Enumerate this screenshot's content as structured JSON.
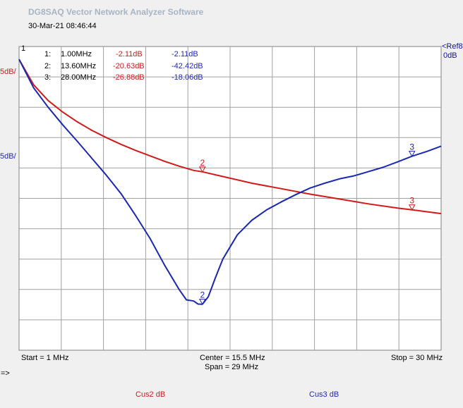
{
  "app_title": "DG8SAQ Vector Network Analyzer Software",
  "timestamp": "30-Mar-21   08:46:44",
  "ref_label": "<Ref8",
  "ref_value": "0dB",
  "scale_label_1": "5dB/",
  "scale_label_2": "5dB/",
  "marker_table": [
    {
      "num": "1:",
      "freq": "1.00MHz",
      "v1": "-2.11dB",
      "v2": "-2.11dB"
    },
    {
      "num": "2:",
      "freq": "13.60MHz",
      "v1": "-20.63dB",
      "v2": "-42.42dB"
    },
    {
      "num": "3:",
      "freq": "28.00MHz",
      "v1": "-26.88dB",
      "v2": "-18.06dB"
    }
  ],
  "axis": {
    "start": "Start = 1 MHz",
    "center": "Center = 15.5 MHz",
    "span": "Span = 29 MHz",
    "stop": "Stop = 30 MHz"
  },
  "arrow_label": "=>",
  "legend": [
    {
      "name": "Cus2 dB",
      "color": "#c81e1e"
    },
    {
      "name": "Cus3 dB",
      "color": "#1e28b4"
    }
  ],
  "colors": {
    "red": "#d21a1a",
    "blue": "#1a28b4",
    "grid": "#a0a0a0",
    "plot_bg": "#ffffff"
  },
  "chart_data": {
    "type": "line",
    "xlim": [
      1,
      30
    ],
    "ylim": [
      -50,
      0
    ],
    "grid": true,
    "series": [
      {
        "name": "Cus2 dB",
        "color": "#d21a1a",
        "x": [
          1,
          2,
          3,
          4,
          5,
          6,
          7,
          8,
          9,
          10,
          11,
          12,
          13,
          13.6,
          15,
          17,
          19,
          21,
          23,
          25,
          27,
          28,
          30
        ],
        "y": [
          -2.11,
          -6.3,
          -8.9,
          -10.8,
          -12.4,
          -13.8,
          -15.0,
          -16.1,
          -17.1,
          -18.0,
          -18.9,
          -19.7,
          -20.4,
          -20.63,
          -21.4,
          -22.5,
          -23.4,
          -24.3,
          -25.1,
          -25.9,
          -26.6,
          -26.88,
          -27.5
        ]
      },
      {
        "name": "Cus3 dB",
        "color": "#1a28b4",
        "x": [
          1,
          2,
          3,
          4,
          5,
          6,
          7,
          8,
          9,
          10,
          11,
          12,
          12.5,
          13,
          13.3,
          13.6,
          14,
          14.5,
          15,
          16,
          17,
          18,
          19,
          20,
          21,
          22,
          23,
          24,
          25,
          26,
          27,
          28,
          29,
          30
        ],
        "y": [
          -2.11,
          -6.8,
          -10.0,
          -12.9,
          -15.6,
          -18.4,
          -21.2,
          -24.2,
          -27.8,
          -31.6,
          -36.0,
          -40.0,
          -41.7,
          -41.9,
          -42.4,
          -42.42,
          -41.2,
          -38.0,
          -35.0,
          -31.0,
          -28.6,
          -26.9,
          -25.6,
          -24.4,
          -23.3,
          -22.5,
          -21.8,
          -21.3,
          -20.6,
          -19.9,
          -19.0,
          -18.06,
          -17.3,
          -16.4
        ]
      }
    ],
    "markers": [
      {
        "id": "1",
        "x": 1,
        "y": -2.11,
        "series": "both"
      },
      {
        "id": "2",
        "x": 13.6,
        "y": -20.63,
        "series": "Cus2 dB"
      },
      {
        "id": "2",
        "x": 13.6,
        "y": -42.42,
        "series": "Cus3 dB"
      },
      {
        "id": "3",
        "x": 28,
        "y": -26.88,
        "series": "Cus2 dB"
      },
      {
        "id": "3",
        "x": 28,
        "y": -18.06,
        "series": "Cus3 dB"
      }
    ]
  }
}
